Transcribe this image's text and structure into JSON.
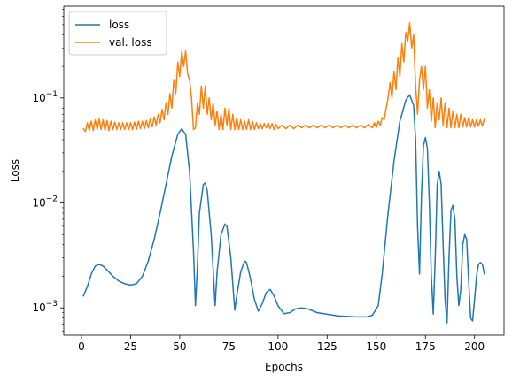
{
  "chart_data": {
    "type": "line",
    "title": "",
    "xlabel": "Epochs",
    "ylabel": "Loss",
    "xlim": [
      -9,
      215
    ],
    "ylim": [
      0.00055,
      0.75
    ],
    "yscale": "log",
    "grid": false,
    "legend_position": "top-left",
    "x_ticks": [
      {
        "value": 0,
        "label": "0"
      },
      {
        "value": 25,
        "label": "25"
      },
      {
        "value": 50,
        "label": "50"
      },
      {
        "value": 75,
        "label": "75"
      },
      {
        "value": 100,
        "label": "100"
      },
      {
        "value": 125,
        "label": "125"
      },
      {
        "value": 150,
        "label": "150"
      },
      {
        "value": 175,
        "label": "175"
      },
      {
        "value": 200,
        "label": "200"
      }
    ],
    "y_ticks": [
      {
        "value": 0.001,
        "base": "10",
        "exp": "−3"
      },
      {
        "value": 0.01,
        "base": "10",
        "exp": "−2"
      },
      {
        "value": 0.1,
        "base": "10",
        "exp": "−1"
      }
    ],
    "series": [
      {
        "name": "loss",
        "color": "#1f77b4",
        "points": [
          [
            1,
            0.0013
          ],
          [
            3,
            0.0016
          ],
          [
            5,
            0.0021
          ],
          [
            7,
            0.0025
          ],
          [
            9,
            0.0026
          ],
          [
            11,
            0.0025
          ],
          [
            13,
            0.0023
          ],
          [
            16,
            0.002
          ],
          [
            19,
            0.0018
          ],
          [
            22,
            0.0017
          ],
          [
            25,
            0.00165
          ],
          [
            28,
            0.0017
          ],
          [
            31,
            0.002
          ],
          [
            34,
            0.0028
          ],
          [
            37,
            0.0045
          ],
          [
            40,
            0.008
          ],
          [
            43,
            0.015
          ],
          [
            46,
            0.028
          ],
          [
            49,
            0.045
          ],
          [
            51,
            0.051
          ],
          [
            53,
            0.045
          ],
          [
            55,
            0.02
          ],
          [
            57,
            0.0035
          ],
          [
            58,
            0.00105
          ],
          [
            59,
            0.0025
          ],
          [
            60,
            0.008
          ],
          [
            62,
            0.015
          ],
          [
            63,
            0.0155
          ],
          [
            64,
            0.013
          ],
          [
            66,
            0.005
          ],
          [
            68,
            0.00105
          ],
          [
            69,
            0.0022
          ],
          [
            71,
            0.005
          ],
          [
            73,
            0.0063
          ],
          [
            74,
            0.006
          ],
          [
            76,
            0.003
          ],
          [
            78,
            0.00095
          ],
          [
            79,
            0.0013
          ],
          [
            81,
            0.0022
          ],
          [
            83,
            0.0028
          ],
          [
            84,
            0.0027
          ],
          [
            86,
            0.0019
          ],
          [
            88,
            0.0012
          ],
          [
            90,
            0.00093
          ],
          [
            92,
            0.0011
          ],
          [
            94,
            0.0014
          ],
          [
            96,
            0.0015
          ],
          [
            98,
            0.0013
          ],
          [
            100,
            0.00105
          ],
          [
            103,
            0.00088
          ],
          [
            106,
            0.0009
          ],
          [
            109,
            0.00098
          ],
          [
            112,
            0.001
          ],
          [
            115,
            0.00098
          ],
          [
            120,
            0.0009
          ],
          [
            130,
            0.00084
          ],
          [
            140,
            0.00082
          ],
          [
            145,
            0.00082
          ],
          [
            148,
            0.00085
          ],
          [
            151,
            0.00105
          ],
          [
            153,
            0.0021
          ],
          [
            156,
            0.008
          ],
          [
            159,
            0.025
          ],
          [
            162,
            0.06
          ],
          [
            165,
            0.095
          ],
          [
            167,
            0.107
          ],
          [
            169,
            0.085
          ],
          [
            170,
            0.04
          ],
          [
            171,
            0.006
          ],
          [
            172,
            0.0021
          ],
          [
            173,
            0.012
          ],
          [
            174,
            0.035
          ],
          [
            175,
            0.042
          ],
          [
            176,
            0.033
          ],
          [
            177,
            0.01
          ],
          [
            178,
            0.002
          ],
          [
            179,
            0.00087
          ],
          [
            180,
            0.003
          ],
          [
            181,
            0.015
          ],
          [
            182,
            0.02
          ],
          [
            183,
            0.015
          ],
          [
            184,
            0.004
          ],
          [
            185,
            0.0012
          ],
          [
            186,
            0.00072
          ],
          [
            187,
            0.003
          ],
          [
            188,
            0.0085
          ],
          [
            189,
            0.0095
          ],
          [
            190,
            0.007
          ],
          [
            191,
            0.002
          ],
          [
            192,
            0.00105
          ],
          [
            193,
            0.0015
          ],
          [
            194,
            0.004
          ],
          [
            195,
            0.005
          ],
          [
            196,
            0.0045
          ],
          [
            197,
            0.0018
          ],
          [
            198,
            0.0008
          ],
          [
            199,
            0.00075
          ],
          [
            200,
            0.0012
          ],
          [
            201,
            0.002
          ],
          [
            202,
            0.0026
          ],
          [
            203,
            0.0027
          ],
          [
            204,
            0.0026
          ],
          [
            205,
            0.0021
          ]
        ]
      },
      {
        "name": "val. loss",
        "color": "#ff7f0e",
        "points": [
          [
            1,
            0.051
          ],
          [
            2,
            0.048
          ],
          [
            3,
            0.058
          ],
          [
            4,
            0.049
          ],
          [
            5,
            0.06
          ],
          [
            6,
            0.049
          ],
          [
            7,
            0.062
          ],
          [
            8,
            0.05
          ],
          [
            9,
            0.063
          ],
          [
            10,
            0.05
          ],
          [
            11,
            0.062
          ],
          [
            12,
            0.049
          ],
          [
            13,
            0.061
          ],
          [
            14,
            0.049
          ],
          [
            15,
            0.06
          ],
          [
            16,
            0.05
          ],
          [
            17,
            0.059
          ],
          [
            18,
            0.05
          ],
          [
            19,
            0.058
          ],
          [
            20,
            0.05
          ],
          [
            21,
            0.058
          ],
          [
            22,
            0.05
          ],
          [
            23,
            0.058
          ],
          [
            24,
            0.05
          ],
          [
            25,
            0.058
          ],
          [
            26,
            0.05
          ],
          [
            27,
            0.059
          ],
          [
            28,
            0.05
          ],
          [
            29,
            0.06
          ],
          [
            30,
            0.051
          ],
          [
            31,
            0.06
          ],
          [
            32,
            0.051
          ],
          [
            33,
            0.061
          ],
          [
            34,
            0.052
          ],
          [
            35,
            0.063
          ],
          [
            36,
            0.053
          ],
          [
            37,
            0.066
          ],
          [
            38,
            0.055
          ],
          [
            39,
            0.07
          ],
          [
            40,
            0.058
          ],
          [
            41,
            0.078
          ],
          [
            42,
            0.062
          ],
          [
            43,
            0.09
          ],
          [
            44,
            0.07
          ],
          [
            45,
            0.11
          ],
          [
            46,
            0.08
          ],
          [
            47,
            0.15
          ],
          [
            48,
            0.11
          ],
          [
            49,
            0.22
          ],
          [
            50,
            0.16
          ],
          [
            51,
            0.28
          ],
          [
            52,
            0.2
          ],
          [
            53,
            0.28
          ],
          [
            54,
            0.17
          ],
          [
            55,
            0.15
          ],
          [
            56,
            0.1
          ],
          [
            57,
            0.05
          ],
          [
            58,
            0.052
          ],
          [
            59,
            0.09
          ],
          [
            60,
            0.07
          ],
          [
            61,
            0.13
          ],
          [
            62,
            0.08
          ],
          [
            63,
            0.13
          ],
          [
            64,
            0.07
          ],
          [
            65,
            0.1
          ],
          [
            66,
            0.062
          ],
          [
            67,
            0.09
          ],
          [
            68,
            0.055
          ],
          [
            69,
            0.075
          ],
          [
            70,
            0.05
          ],
          [
            71,
            0.07
          ],
          [
            72,
            0.05
          ],
          [
            73,
            0.08
          ],
          [
            74,
            0.055
          ],
          [
            75,
            0.08
          ],
          [
            76,
            0.05
          ],
          [
            77,
            0.07
          ],
          [
            78,
            0.05
          ],
          [
            79,
            0.065
          ],
          [
            80,
            0.05
          ],
          [
            81,
            0.062
          ],
          [
            82,
            0.05
          ],
          [
            83,
            0.06
          ],
          [
            84,
            0.05
          ],
          [
            85,
            0.062
          ],
          [
            86,
            0.05
          ],
          [
            87,
            0.06
          ],
          [
            88,
            0.05
          ],
          [
            89,
            0.058
          ],
          [
            90,
            0.051
          ],
          [
            91,
            0.057
          ],
          [
            92,
            0.051
          ],
          [
            93,
            0.057
          ],
          [
            94,
            0.052
          ],
          [
            95,
            0.058
          ],
          [
            96,
            0.051
          ],
          [
            97,
            0.057
          ],
          [
            98,
            0.05
          ],
          [
            99,
            0.056
          ],
          [
            100,
            0.051
          ],
          [
            102,
            0.055
          ],
          [
            104,
            0.051
          ],
          [
            106,
            0.055
          ],
          [
            108,
            0.051
          ],
          [
            110,
            0.055
          ],
          [
            112,
            0.052
          ],
          [
            114,
            0.055
          ],
          [
            116,
            0.052
          ],
          [
            118,
            0.055
          ],
          [
            120,
            0.052
          ],
          [
            122,
            0.055
          ],
          [
            124,
            0.052
          ],
          [
            126,
            0.055
          ],
          [
            128,
            0.052
          ],
          [
            130,
            0.055
          ],
          [
            132,
            0.052
          ],
          [
            134,
            0.055
          ],
          [
            136,
            0.052
          ],
          [
            138,
            0.055
          ],
          [
            140,
            0.052
          ],
          [
            142,
            0.055
          ],
          [
            144,
            0.052
          ],
          [
            146,
            0.056
          ],
          [
            148,
            0.052
          ],
          [
            149,
            0.058
          ],
          [
            150,
            0.052
          ],
          [
            151,
            0.06
          ],
          [
            152,
            0.055
          ],
          [
            153,
            0.065
          ],
          [
            154,
            0.062
          ],
          [
            155,
            0.08
          ],
          [
            156,
            0.1
          ],
          [
            157,
            0.14
          ],
          [
            158,
            0.1
          ],
          [
            159,
            0.18
          ],
          [
            160,
            0.12
          ],
          [
            161,
            0.24
          ],
          [
            162,
            0.16
          ],
          [
            163,
            0.33
          ],
          [
            164,
            0.22
          ],
          [
            165,
            0.42
          ],
          [
            166,
            0.35
          ],
          [
            167,
            0.52
          ],
          [
            168,
            0.3
          ],
          [
            169,
            0.4
          ],
          [
            170,
            0.13
          ],
          [
            171,
            0.07
          ],
          [
            172,
            0.15
          ],
          [
            173,
            0.2
          ],
          [
            174,
            0.12
          ],
          [
            175,
            0.2
          ],
          [
            176,
            0.08
          ],
          [
            177,
            0.12
          ],
          [
            178,
            0.06
          ],
          [
            179,
            0.1
          ],
          [
            180,
            0.052
          ],
          [
            181,
            0.09
          ],
          [
            182,
            0.062
          ],
          [
            183,
            0.1
          ],
          [
            184,
            0.055
          ],
          [
            185,
            0.09
          ],
          [
            186,
            0.052
          ],
          [
            187,
            0.08
          ],
          [
            188,
            0.052
          ],
          [
            189,
            0.075
          ],
          [
            190,
            0.052
          ],
          [
            191,
            0.07
          ],
          [
            192,
            0.052
          ],
          [
            193,
            0.07
          ],
          [
            194,
            0.053
          ],
          [
            195,
            0.065
          ],
          [
            196,
            0.053
          ],
          [
            197,
            0.065
          ],
          [
            198,
            0.053
          ],
          [
            199,
            0.062
          ],
          [
            200,
            0.053
          ],
          [
            201,
            0.062
          ],
          [
            202,
            0.054
          ],
          [
            203,
            0.062
          ],
          [
            204,
            0.054
          ],
          [
            205,
            0.063
          ]
        ]
      }
    ]
  }
}
